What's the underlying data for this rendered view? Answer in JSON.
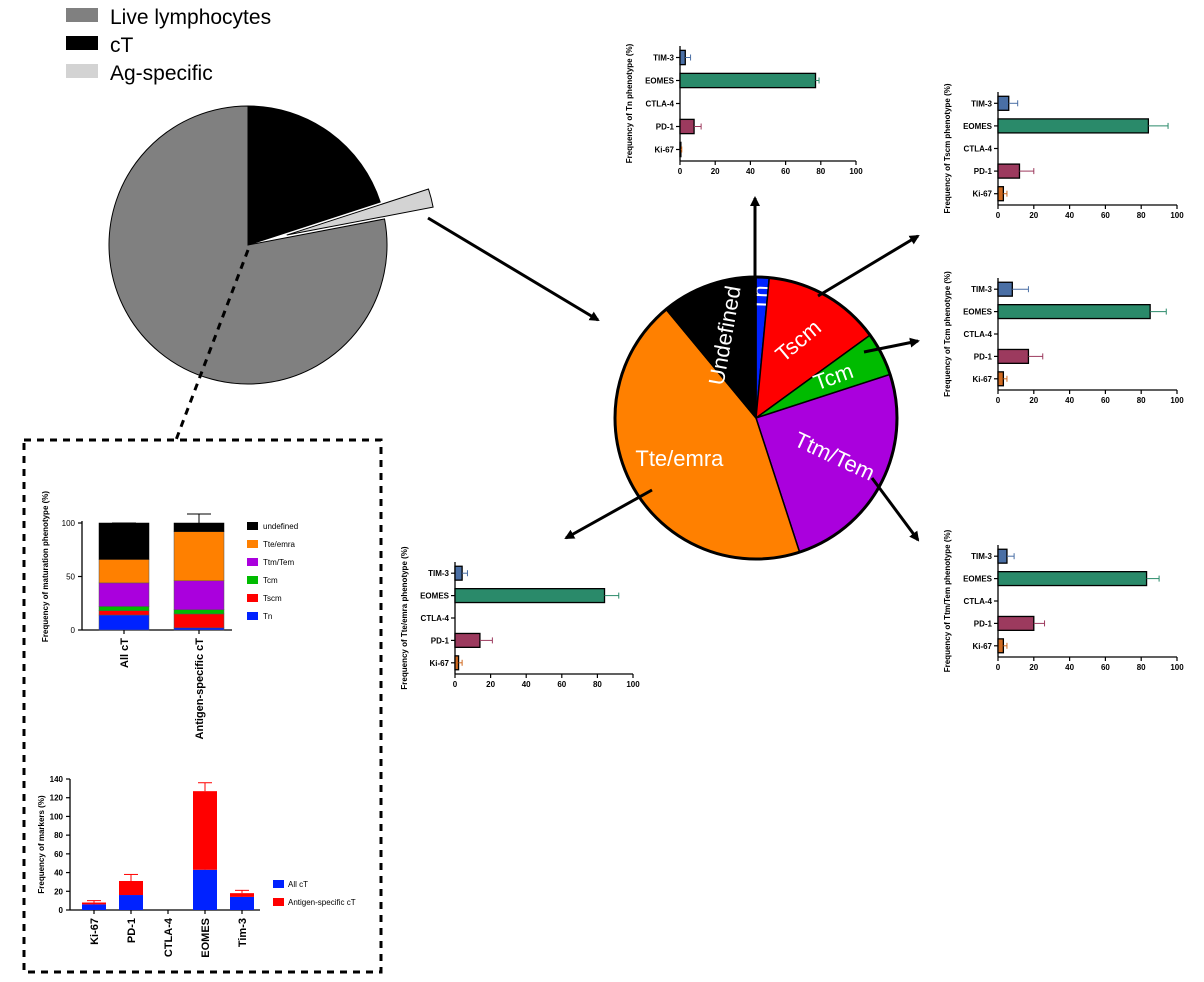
{
  "colors": {
    "live": "#808080",
    "ct": "#000000",
    "ag": "#d3d3d3",
    "undefined": "#000000",
    "tte": "#ff8000",
    "ttm": "#aa00dd",
    "tcm": "#00bb00",
    "tscm": "#ff0000",
    "tn": "#0022ff",
    "tim3": "#4a6fa5",
    "eomes": "#2a8a6a",
    "pd1": "#9c3a5e",
    "ki67": "#d06a20",
    "allct": "#0022ff",
    "agct": "#ff0000"
  },
  "chart_data": [
    {
      "type": "pie",
      "legend": [
        "Live lymphocytes",
        "cT",
        "Ag-specific"
      ],
      "values": [
        78,
        20,
        2
      ],
      "colors": [
        "#808080",
        "#000000",
        "#d3d3d3"
      ]
    },
    {
      "type": "pie",
      "labels": [
        "Tn",
        "Tscm",
        "Tcm",
        "Ttm/Tem",
        "Tte/emra",
        "Undefined"
      ],
      "values": [
        1.5,
        13.5,
        5,
        25,
        44,
        11
      ],
      "colors": [
        "#0022ff",
        "#ff0000",
        "#00bb00",
        "#aa00dd",
        "#ff8000",
        "#000000"
      ]
    },
    {
      "type": "bar",
      "orientation": "horizontal",
      "ylabel": "Frequency of Tn phenotype (%)",
      "categories": [
        "TIM-3",
        "EOMES",
        "CTLA-4",
        "PD-1",
        "Ki-67"
      ],
      "values": [
        3,
        77,
        0,
        8,
        0.5
      ],
      "errors": [
        3,
        2,
        0,
        4,
        0.5
      ],
      "xlim": [
        0,
        100
      ],
      "xticks": [
        "0",
        "20",
        "40",
        "60",
        "80",
        "100"
      ]
    },
    {
      "type": "bar",
      "orientation": "horizontal",
      "ylabel": "Frequency of Tscm phenotype (%)",
      "categories": [
        "TIM-3",
        "EOMES",
        "CTLA-4",
        "PD-1",
        "Ki-67"
      ],
      "values": [
        6,
        84,
        0,
        12,
        3
      ],
      "errors": [
        5,
        11,
        0,
        8,
        2
      ],
      "xlim": [
        0,
        100
      ],
      "xticks": [
        "0",
        "20",
        "40",
        "60",
        "80",
        "100"
      ]
    },
    {
      "type": "bar",
      "orientation": "horizontal",
      "ylabel": "Frequency of Tcm phenotype (%)",
      "categories": [
        "TIM-3",
        "EOMES",
        "CTLA-4",
        "PD-1",
        "Ki-67"
      ],
      "values": [
        8,
        85,
        0,
        17,
        3
      ],
      "errors": [
        9,
        9,
        0,
        8,
        2
      ],
      "xlim": [
        0,
        100
      ],
      "xticks": [
        "0",
        "20",
        "40",
        "60",
        "80",
        "100"
      ]
    },
    {
      "type": "bar",
      "orientation": "horizontal",
      "ylabel": "Frequency of Ttm/Tem phenotype (%)",
      "categories": [
        "TIM-3",
        "EOMES",
        "CTLA-4",
        "PD-1",
        "Ki-67"
      ],
      "values": [
        5,
        83,
        0,
        20,
        3
      ],
      "errors": [
        4,
        7,
        0,
        6,
        2
      ],
      "xlim": [
        0,
        100
      ],
      "xticks": [
        "0",
        "20",
        "40",
        "60",
        "80",
        "100"
      ]
    },
    {
      "type": "bar",
      "orientation": "horizontal",
      "ylabel": "Frequency of Tte/emra phenotype (%)",
      "categories": [
        "TIM-3",
        "EOMES",
        "CTLA-4",
        "PD-1",
        "Ki-67"
      ],
      "values": [
        4,
        84,
        0,
        14,
        2
      ],
      "errors": [
        3,
        8,
        0,
        7,
        2
      ],
      "xlim": [
        0,
        100
      ],
      "xticks": [
        "0",
        "20",
        "40",
        "60",
        "80",
        "100"
      ]
    },
    {
      "type": "bar",
      "stacked": true,
      "ylabel": "Frequency of maturation phenotype (%)",
      "categories": [
        "All cT",
        "Antigen-specific cT"
      ],
      "series": [
        {
          "name": "Tn",
          "values": [
            14,
            2
          ]
        },
        {
          "name": "Tscm",
          "values": [
            4,
            13
          ]
        },
        {
          "name": "Tcm",
          "values": [
            4,
            4
          ]
        },
        {
          "name": "Ttm/Tem",
          "values": [
            22,
            27
          ]
        },
        {
          "name": "Tte/emra",
          "values": [
            22,
            46
          ]
        },
        {
          "name": "undefined",
          "values": [
            34,
            8
          ]
        }
      ],
      "legend_order": [
        "undefined",
        "Tte/emra",
        "Ttm/Tem",
        "Tcm",
        "Tscm",
        "Tn"
      ],
      "ylim": [
        0,
        100
      ],
      "yticks": [
        "0",
        "50",
        "100"
      ]
    },
    {
      "type": "bar",
      "stacked": true,
      "ylabel": "Frequency of markers (%)",
      "categories": [
        "Ki-67",
        "PD-1",
        "CTLA-4",
        "EOMES",
        "Tim-3"
      ],
      "series": [
        {
          "name": "All cT",
          "values": [
            6,
            16,
            0,
            43,
            14
          ]
        },
        {
          "name": "Antigen-specific cT",
          "values": [
            2,
            15,
            0,
            84,
            4
          ]
        }
      ],
      "ylim": [
        0,
        140
      ],
      "yticks": [
        "0",
        "20",
        "40",
        "60",
        "80",
        "100",
        "120",
        "140"
      ]
    }
  ]
}
